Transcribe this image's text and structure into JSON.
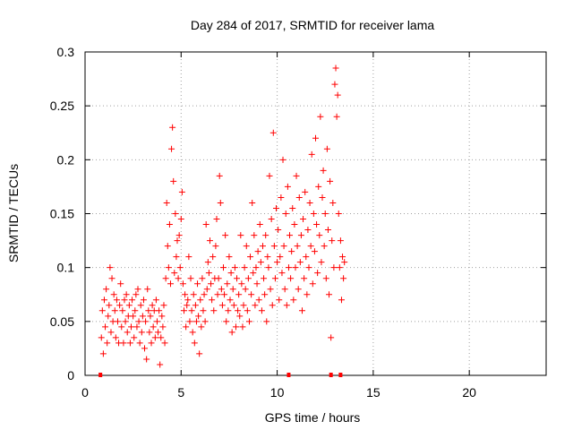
{
  "chart_data": {
    "type": "scatter",
    "title": "Day 284 of 2017, SRMTID for receiver lama",
    "xlabel": "GPS time / hours",
    "ylabel": "SRMTID / TECUs",
    "xlim": [
      0,
      24
    ],
    "ylim": [
      0,
      0.3
    ],
    "x_ticks": [
      0,
      5,
      10,
      15,
      20
    ],
    "y_ticks": [
      0,
      0.05,
      0.1,
      0.15,
      0.2,
      0.25,
      0.3
    ],
    "x_tick_labels": [
      "0",
      "5",
      "10",
      "15",
      "20"
    ],
    "y_tick_labels": [
      "0",
      "0.05",
      "0.1",
      "0.15",
      "0.2",
      "0.25",
      "0.3"
    ],
    "grid": true,
    "marker": "+",
    "color": "#ff0000",
    "series": [
      {
        "name": "SRMTID",
        "points": [
          [
            0.85,
            0.035
          ],
          [
            0.9,
            0.06
          ],
          [
            0.95,
            0.02
          ],
          [
            1.0,
            0.07
          ],
          [
            1.05,
            0.045
          ],
          [
            1.1,
            0.08
          ],
          [
            1.15,
            0.03
          ],
          [
            1.2,
            0.055
          ],
          [
            1.25,
            0.065
          ],
          [
            1.3,
            0.1
          ],
          [
            1.35,
            0.04
          ],
          [
            1.4,
            0.09
          ],
          [
            1.45,
            0.05
          ],
          [
            1.5,
            0.075
          ],
          [
            1.55,
            0.06
          ],
          [
            1.6,
            0.035
          ],
          [
            1.65,
            0.07
          ],
          [
            1.7,
            0.05
          ],
          [
            1.75,
            0.03
          ],
          [
            1.8,
            0.065
          ],
          [
            1.85,
            0.085
          ],
          [
            1.9,
            0.045
          ],
          [
            1.95,
            0.06
          ],
          [
            2.0,
            0.03
          ],
          [
            2.05,
            0.07
          ],
          [
            2.1,
            0.05
          ],
          [
            2.15,
            0.075
          ],
          [
            2.2,
            0.04
          ],
          [
            2.25,
            0.055
          ],
          [
            2.3,
            0.065
          ],
          [
            2.35,
            0.03
          ],
          [
            2.4,
            0.045
          ],
          [
            2.45,
            0.07
          ],
          [
            2.5,
            0.055
          ],
          [
            2.55,
            0.035
          ],
          [
            2.6,
            0.06
          ],
          [
            2.65,
            0.075
          ],
          [
            2.7,
            0.045
          ],
          [
            2.75,
            0.08
          ],
          [
            2.8,
            0.05
          ],
          [
            2.85,
            0.03
          ],
          [
            2.9,
            0.065
          ],
          [
            2.95,
            0.04
          ],
          [
            3.0,
            0.055
          ],
          [
            3.05,
            0.07
          ],
          [
            3.1,
            0.025
          ],
          [
            3.15,
            0.05
          ],
          [
            3.2,
            0.015
          ],
          [
            3.25,
            0.08
          ],
          [
            3.3,
            0.06
          ],
          [
            3.35,
            0.04
          ],
          [
            3.4,
            0.055
          ],
          [
            3.45,
            0.03
          ],
          [
            3.5,
            0.065
          ],
          [
            3.55,
            0.045
          ],
          [
            3.6,
            0.06
          ],
          [
            3.65,
            0.035
          ],
          [
            3.7,
            0.07
          ],
          [
            3.75,
            0.05
          ],
          [
            3.8,
            0.04
          ],
          [
            3.85,
            0.06
          ],
          [
            3.9,
            0.01
          ],
          [
            3.95,
            0.035
          ],
          [
            4.0,
            0.055
          ],
          [
            4.05,
            0.045
          ],
          [
            4.1,
            0.065
          ],
          [
            4.15,
            0.03
          ],
          [
            4.2,
            0.09
          ],
          [
            4.25,
            0.16
          ],
          [
            4.3,
            0.12
          ],
          [
            4.35,
            0.1
          ],
          [
            4.4,
            0.14
          ],
          [
            4.45,
            0.085
          ],
          [
            4.5,
            0.21
          ],
          [
            4.55,
            0.23
          ],
          [
            4.6,
            0.18
          ],
          [
            4.65,
            0.095
          ],
          [
            4.7,
            0.15
          ],
          [
            4.75,
            0.11
          ],
          [
            4.8,
            0.125
          ],
          [
            4.85,
            0.09
          ],
          [
            4.9,
            0.13
          ],
          [
            4.95,
            0.1
          ],
          [
            5.0,
            0.145
          ],
          [
            5.05,
            0.17
          ],
          [
            5.1,
            0.085
          ],
          [
            5.15,
            0.06
          ],
          [
            5.2,
            0.075
          ],
          [
            5.25,
            0.045
          ],
          [
            5.3,
            0.065
          ],
          [
            5.35,
            0.07
          ],
          [
            5.4,
            0.11
          ],
          [
            5.45,
            0.05
          ],
          [
            5.5,
            0.09
          ],
          [
            5.55,
            0.06
          ],
          [
            5.6,
            0.04
          ],
          [
            5.65,
            0.075
          ],
          [
            5.7,
            0.03
          ],
          [
            5.75,
            0.065
          ],
          [
            5.8,
            0.05
          ],
          [
            5.85,
            0.085
          ],
          [
            5.9,
            0.055
          ],
          [
            5.95,
            0.02
          ],
          [
            6.0,
            0.07
          ],
          [
            6.05,
            0.045
          ],
          [
            6.1,
            0.09
          ],
          [
            6.15,
            0.06
          ],
          [
            6.2,
            0.075
          ],
          [
            6.25,
            0.05
          ],
          [
            6.3,
            0.14
          ],
          [
            6.35,
            0.08
          ],
          [
            6.4,
            0.105
          ],
          [
            6.45,
            0.095
          ],
          [
            6.5,
            0.125
          ],
          [
            6.55,
            0.085
          ],
          [
            6.6,
            0.07
          ],
          [
            6.65,
            0.11
          ],
          [
            6.7,
            0.06
          ],
          [
            6.75,
            0.09
          ],
          [
            6.8,
            0.12
          ],
          [
            6.85,
            0.145
          ],
          [
            6.9,
            0.075
          ],
          [
            6.95,
            0.09
          ],
          [
            7.0,
            0.185
          ],
          [
            7.05,
            0.16
          ],
          [
            7.1,
            0.08
          ],
          [
            7.15,
            0.065
          ],
          [
            7.2,
            0.1
          ],
          [
            7.25,
            0.075
          ],
          [
            7.3,
            0.13
          ],
          [
            7.35,
            0.05
          ],
          [
            7.4,
            0.085
          ],
          [
            7.45,
            0.06
          ],
          [
            7.5,
            0.11
          ],
          [
            7.55,
            0.07
          ],
          [
            7.6,
            0.095
          ],
          [
            7.65,
            0.04
          ],
          [
            7.7,
            0.08
          ],
          [
            7.75,
            0.065
          ],
          [
            7.8,
            0.1
          ],
          [
            7.85,
            0.045
          ],
          [
            7.9,
            0.09
          ],
          [
            7.95,
            0.06
          ],
          [
            8.0,
            0.075
          ],
          [
            8.05,
            0.055
          ],
          [
            8.1,
            0.13
          ],
          [
            8.15,
            0.085
          ],
          [
            8.2,
            0.045
          ],
          [
            8.25,
            0.065
          ],
          [
            8.3,
            0.1
          ],
          [
            8.35,
            0.08
          ],
          [
            8.4,
            0.12
          ],
          [
            8.45,
            0.06
          ],
          [
            8.5,
            0.09
          ],
          [
            8.55,
            0.05
          ],
          [
            8.6,
            0.11
          ],
          [
            8.65,
            0.075
          ],
          [
            8.7,
            0.16
          ],
          [
            8.75,
            0.095
          ],
          [
            8.8,
            0.13
          ],
          [
            8.85,
            0.065
          ],
          [
            8.9,
            0.1
          ],
          [
            8.95,
            0.085
          ],
          [
            9.0,
            0.115
          ],
          [
            9.05,
            0.07
          ],
          [
            9.1,
            0.14
          ],
          [
            9.15,
            0.105
          ],
          [
            9.2,
            0.06
          ],
          [
            9.25,
            0.12
          ],
          [
            9.3,
            0.09
          ],
          [
            9.35,
            0.075
          ],
          [
            9.4,
            0.13
          ],
          [
            9.45,
            0.05
          ],
          [
            9.5,
            0.11
          ],
          [
            9.55,
            0.1
          ],
          [
            9.6,
            0.185
          ],
          [
            9.65,
            0.08
          ],
          [
            9.7,
            0.145
          ],
          [
            9.75,
            0.065
          ],
          [
            9.8,
            0.225
          ],
          [
            9.85,
            0.12
          ],
          [
            9.9,
            0.09
          ],
          [
            9.95,
            0.155
          ],
          [
            10.0,
            0.105
          ],
          [
            10.05,
            0.135
          ],
          [
            10.1,
            0.07
          ],
          [
            10.15,
            0.11
          ],
          [
            10.2,
            0.165
          ],
          [
            10.25,
            0.095
          ],
          [
            10.3,
            0.2
          ],
          [
            10.35,
            0.12
          ],
          [
            10.4,
            0.08
          ],
          [
            10.45,
            0.15
          ],
          [
            10.5,
            0.065
          ],
          [
            10.55,
            0.175
          ],
          [
            10.6,
            0.1
          ],
          [
            10.65,
            0.13
          ],
          [
            10.7,
            0.09
          ],
          [
            10.75,
            0.115
          ],
          [
            10.8,
            0.155
          ],
          [
            10.85,
            0.07
          ],
          [
            10.9,
            0.14
          ],
          [
            10.95,
            0.1
          ],
          [
            11.0,
            0.185
          ],
          [
            11.05,
            0.12
          ],
          [
            11.1,
            0.08
          ],
          [
            11.15,
            0.165
          ],
          [
            11.2,
            0.105
          ],
          [
            11.25,
            0.13
          ],
          [
            11.3,
            0.06
          ],
          [
            11.35,
            0.145
          ],
          [
            11.4,
            0.09
          ],
          [
            11.45,
            0.17
          ],
          [
            11.5,
            0.11
          ],
          [
            11.55,
            0.075
          ],
          [
            11.6,
            0.135
          ],
          [
            11.65,
            0.1
          ],
          [
            11.7,
            0.16
          ],
          [
            11.75,
            0.12
          ],
          [
            11.8,
            0.205
          ],
          [
            11.85,
            0.085
          ],
          [
            11.9,
            0.15
          ],
          [
            11.95,
            0.115
          ],
          [
            12.0,
            0.22
          ],
          [
            12.05,
            0.14
          ],
          [
            12.1,
            0.095
          ],
          [
            12.15,
            0.175
          ],
          [
            12.2,
            0.13
          ],
          [
            12.25,
            0.24
          ],
          [
            12.3,
            0.105
          ],
          [
            12.35,
            0.165
          ],
          [
            12.4,
            0.19
          ],
          [
            12.45,
            0.12
          ],
          [
            12.5,
            0.15
          ],
          [
            12.55,
            0.09
          ],
          [
            12.6,
            0.21
          ],
          [
            12.65,
            0.135
          ],
          [
            12.7,
            0.075
          ],
          [
            12.75,
            0.18
          ],
          [
            12.8,
            0.035
          ],
          [
            12.85,
            0.125
          ],
          [
            12.9,
            0.16
          ],
          [
            12.95,
            0.1
          ],
          [
            13.0,
            0.27
          ],
          [
            13.05,
            0.285
          ],
          [
            13.1,
            0.24
          ],
          [
            13.15,
            0.26
          ],
          [
            13.2,
            0.15
          ],
          [
            13.25,
            0.1
          ],
          [
            13.3,
            0.125
          ],
          [
            13.35,
            0.07
          ],
          [
            13.4,
            0.11
          ],
          [
            13.45,
            0.09
          ],
          [
            13.5,
            0.105
          ]
        ]
      }
    ],
    "zero_markers_x": [
      0.8,
      10.6,
      12.8,
      13.3
    ]
  }
}
